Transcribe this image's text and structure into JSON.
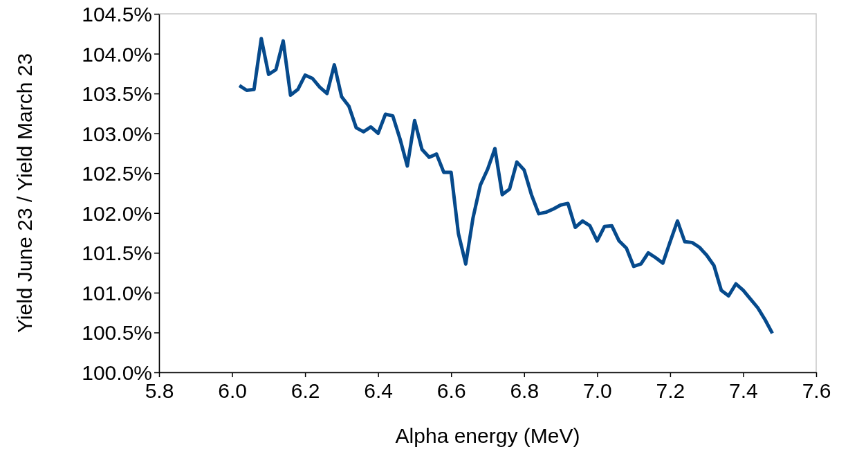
{
  "chart_data": {
    "type": "line",
    "xlabel": "Alpha energy (MeV)",
    "ylabel": "Yield June 23 / Yield March 23",
    "x": [
      6.02,
      6.04,
      6.06,
      6.08,
      6.1,
      6.12,
      6.14,
      6.16,
      6.18,
      6.2,
      6.22,
      6.24,
      6.26,
      6.28,
      6.3,
      6.32,
      6.34,
      6.36,
      6.38,
      6.4,
      6.42,
      6.44,
      6.46,
      6.48,
      6.5,
      6.52,
      6.54,
      6.56,
      6.58,
      6.6,
      6.62,
      6.64,
      6.66,
      6.68,
      6.7,
      6.72,
      6.74,
      6.76,
      6.78,
      6.8,
      6.82,
      6.84,
      6.86,
      6.88,
      6.9,
      6.92,
      6.94,
      6.96,
      6.98,
      7.0,
      7.02,
      7.04,
      7.06,
      7.08,
      7.1,
      7.12,
      7.14,
      7.16,
      7.18,
      7.2,
      7.22,
      7.24,
      7.26,
      7.28,
      7.3,
      7.32,
      7.34,
      7.36,
      7.38,
      7.4,
      7.42,
      7.44,
      7.46,
      7.48
    ],
    "series": [
      {
        "color": "#064a8c",
        "values": [
          103.6,
          103.54,
          103.55,
          104.19,
          103.74,
          103.8,
          104.16,
          103.48,
          103.55,
          103.73,
          103.69,
          103.58,
          103.5,
          103.86,
          103.46,
          103.34,
          103.07,
          103.02,
          103.08,
          103.0,
          103.24,
          103.22,
          102.93,
          102.59,
          103.16,
          102.8,
          102.7,
          102.74,
          102.51,
          102.51,
          101.74,
          101.36,
          101.94,
          102.35,
          102.55,
          102.81,
          102.23,
          102.3,
          102.64,
          102.54,
          102.23,
          101.99,
          102.01,
          102.05,
          102.1,
          102.12,
          101.82,
          101.9,
          101.84,
          101.65,
          101.83,
          101.84,
          101.65,
          101.56,
          101.33,
          101.36,
          101.5,
          101.44,
          101.37,
          101.64,
          101.9,
          101.64,
          101.63,
          101.57,
          101.47,
          101.34,
          101.03,
          100.96,
          101.11,
          101.03,
          100.92,
          100.81,
          100.66,
          100.49
        ]
      }
    ],
    "xlim": [
      5.8,
      7.6
    ],
    "xticks": [
      5.8,
      {
        "value": 6,
        "label": "6.0"
      },
      6.2,
      6.4,
      6.6,
      6.8,
      {
        "value": 7,
        "label": "7.0"
      },
      7.2,
      7.4,
      7.6
    ],
    "ylim": [
      100,
      104.5
    ],
    "yticks": [
      {
        "value": 100,
        "label": "100.0%"
      },
      {
        "value": 100.5,
        "label": "100.5%"
      },
      {
        "value": 101,
        "label": "101.0%"
      },
      {
        "value": 101.5,
        "label": "101.5%"
      },
      {
        "value": 102,
        "label": "102.0%"
      },
      {
        "value": 102.5,
        "label": "102.5%"
      },
      {
        "value": 103,
        "label": "103.0%"
      },
      {
        "value": 103.5,
        "label": "103.5%"
      },
      {
        "value": 104,
        "label": "104.0%"
      },
      {
        "value": 104.5,
        "label": "104.5%"
      }
    ],
    "grid": false,
    "marker": "none",
    "line_style": "solid"
  }
}
